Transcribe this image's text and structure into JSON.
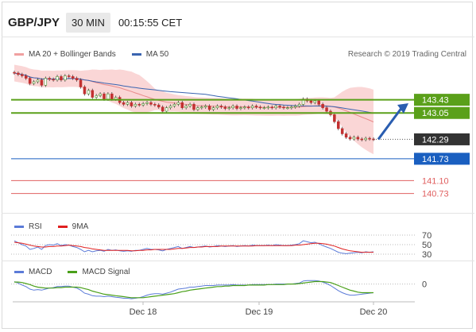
{
  "header": {
    "symbol": "GBP/JPY",
    "timeframe": "30 MIN",
    "time": "00:15:55 CET"
  },
  "legend_main": {
    "bb_label": "MA 20 + Bollinger Bands",
    "ma50_label": "MA 50",
    "copyright": "Research © 2019 Trading Central"
  },
  "legend_rsi": {
    "rsi_label": "RSI",
    "ma9_label": "9MA"
  },
  "legend_macd": {
    "macd_label": "MACD",
    "signal_label": "MACD Signal"
  },
  "colors": {
    "bb_band": "#f8c8c8",
    "ma20": "#e88a8a",
    "ma50": "#3a64b0",
    "level_green": "#5aa01a",
    "level_red": "#e06060",
    "level_blue": "#1a5fc0",
    "price_dark": "#333333",
    "arrow": "#2a5db0",
    "rsi": "#5b7bd8",
    "ma9": "#e02020",
    "macd": "#5b7bd8",
    "signal": "#4aa01a"
  },
  "chart_data": {
    "type": "candlestick",
    "x_labels": [
      "Dec 18",
      "Dec 19",
      "Dec 20"
    ],
    "ylim": [
      140.4,
      144.2
    ],
    "levels": [
      {
        "name": "resistance-2",
        "value": 143.43,
        "label": "143.43",
        "color": "#5aa01a"
      },
      {
        "name": "resistance-1",
        "value": 143.05,
        "label": "143.05",
        "color": "#5aa01a"
      },
      {
        "name": "last-price",
        "value": 142.29,
        "label": "142.29",
        "color": "#333333"
      },
      {
        "name": "pivot",
        "value": 141.73,
        "label": "141.73",
        "color": "#1a5fc0"
      },
      {
        "name": "support-1",
        "value": 141.1,
        "label": "141.10",
        "color": "#e06060"
      },
      {
        "name": "support-2",
        "value": 140.73,
        "label": "140.73",
        "color": "#e06060"
      }
    ],
    "close": [
      144.2,
      144.16,
      144.12,
      144.05,
      143.9,
      143.95,
      144.0,
      143.85,
      144.05,
      144.02,
      144.0,
      144.1,
      144.0,
      144.12,
      144.1,
      144.05,
      144.0,
      143.8,
      143.6,
      143.7,
      143.5,
      143.55,
      143.6,
      143.45,
      143.6,
      143.45,
      143.5,
      143.35,
      143.3,
      143.35,
      143.25,
      143.3,
      143.28,
      143.32,
      143.35,
      143.3,
      143.28,
      143.22,
      143.1,
      143.2,
      143.25,
      143.3,
      143.35,
      143.2,
      143.25,
      143.3,
      143.15,
      143.2,
      143.22,
      143.25,
      143.15,
      143.2,
      143.25,
      143.22,
      143.18,
      143.2,
      143.25,
      143.18,
      143.2,
      143.22,
      143.2,
      143.25,
      143.22,
      143.2,
      143.2,
      143.22,
      143.2,
      143.25,
      143.22,
      143.2,
      143.2,
      143.22,
      143.25,
      143.3,
      143.45,
      143.4,
      143.35,
      143.4,
      143.3,
      143.2,
      143.1,
      143.0,
      142.8,
      142.6,
      142.45,
      142.35,
      142.3,
      142.35,
      142.3,
      142.28,
      142.32,
      142.3,
      142.29
    ],
    "rsi": [
      58,
      54,
      50,
      47,
      40,
      42,
      45,
      40,
      48,
      50,
      49,
      52,
      48,
      50,
      49,
      46,
      44,
      40,
      35,
      38,
      35,
      37,
      38,
      36,
      40,
      38,
      39,
      37,
      36,
      37,
      36,
      38,
      38,
      40,
      42,
      40,
      40,
      39,
      37,
      40,
      42,
      44,
      46,
      42,
      44,
      46,
      44,
      45,
      46,
      47,
      45,
      46,
      48,
      47,
      46,
      47,
      48,
      46,
      47,
      48,
      47,
      49,
      48,
      48,
      48,
      49,
      48,
      50,
      49,
      48,
      48,
      49,
      50,
      52,
      58,
      56,
      54,
      55,
      52,
      48,
      45,
      42,
      38,
      34,
      32,
      31,
      32,
      33,
      34,
      33,
      35,
      34,
      35
    ],
    "ma9": [
      55,
      54,
      53,
      51,
      49,
      47,
      46,
      45,
      45,
      46,
      46,
      47,
      47,
      48,
      49,
      48,
      47,
      46,
      44,
      43,
      41,
      40,
      39,
      38,
      38,
      38,
      38,
      38,
      38,
      38,
      37,
      37,
      38,
      38,
      39,
      39,
      40,
      40,
      40,
      40,
      40,
      41,
      42,
      42,
      43,
      44,
      44,
      45,
      45,
      46,
      46,
      46,
      46,
      47,
      47,
      47,
      47,
      47,
      47,
      47,
      47,
      47,
      48,
      48,
      48,
      48,
      48,
      48,
      48,
      48,
      48,
      48,
      49,
      49,
      50,
      51,
      52,
      53,
      53,
      52,
      51,
      49,
      47,
      44,
      41,
      39,
      37,
      36,
      35,
      34,
      34,
      34,
      34
    ],
    "macd": [
      0.05,
      0.02,
      -0.02,
      -0.05,
      -0.1,
      -0.12,
      -0.11,
      -0.12,
      -0.1,
      -0.08,
      -0.07,
      -0.05,
      -0.05,
      -0.04,
      -0.04,
      -0.06,
      -0.08,
      -0.12,
      -0.18,
      -0.2,
      -0.23,
      -0.24,
      -0.24,
      -0.25,
      -0.24,
      -0.25,
      -0.26,
      -0.27,
      -0.28,
      -0.28,
      -0.29,
      -0.28,
      -0.27,
      -0.25,
      -0.22,
      -0.2,
      -0.19,
      -0.19,
      -0.2,
      -0.18,
      -0.16,
      -0.13,
      -0.1,
      -0.09,
      -0.08,
      -0.06,
      -0.06,
      -0.05,
      -0.04,
      -0.03,
      -0.03,
      -0.03,
      -0.02,
      -0.02,
      -0.02,
      -0.02,
      -0.01,
      -0.02,
      -0.02,
      -0.02,
      -0.02,
      -0.01,
      -0.01,
      -0.01,
      -0.01,
      -0.01,
      -0.01,
      0.0,
      0.0,
      0.0,
      0.0,
      0.0,
      0.01,
      0.02,
      0.06,
      0.07,
      0.07,
      0.07,
      0.06,
      0.04,
      0.01,
      -0.03,
      -0.08,
      -0.13,
      -0.17,
      -0.2,
      -0.22,
      -0.22,
      -0.21,
      -0.2,
      -0.19,
      -0.18,
      -0.17
    ],
    "signal": [
      0.04,
      0.04,
      0.03,
      0.01,
      -0.01,
      -0.04,
      -0.06,
      -0.07,
      -0.08,
      -0.08,
      -0.08,
      -0.07,
      -0.07,
      -0.06,
      -0.06,
      -0.06,
      -0.06,
      -0.07,
      -0.09,
      -0.11,
      -0.14,
      -0.16,
      -0.18,
      -0.2,
      -0.21,
      -0.22,
      -0.23,
      -0.24,
      -0.25,
      -0.26,
      -0.27,
      -0.27,
      -0.27,
      -0.27,
      -0.26,
      -0.25,
      -0.24,
      -0.23,
      -0.22,
      -0.21,
      -0.2,
      -0.19,
      -0.17,
      -0.15,
      -0.14,
      -0.12,
      -0.11,
      -0.1,
      -0.09,
      -0.08,
      -0.07,
      -0.06,
      -0.05,
      -0.05,
      -0.04,
      -0.04,
      -0.03,
      -0.03,
      -0.03,
      -0.03,
      -0.02,
      -0.02,
      -0.02,
      -0.02,
      -0.02,
      -0.01,
      -0.01,
      -0.01,
      -0.01,
      -0.01,
      0.0,
      0.0,
      0.0,
      0.01,
      0.02,
      0.03,
      0.04,
      0.05,
      0.05,
      0.05,
      0.04,
      0.03,
      0.0,
      -0.03,
      -0.06,
      -0.09,
      -0.12,
      -0.14,
      -0.16,
      -0.17,
      -0.17,
      -0.17,
      -0.17
    ],
    "rsi_ticks": [
      "70",
      "50",
      "30"
    ],
    "macd_zero_label": "0"
  }
}
